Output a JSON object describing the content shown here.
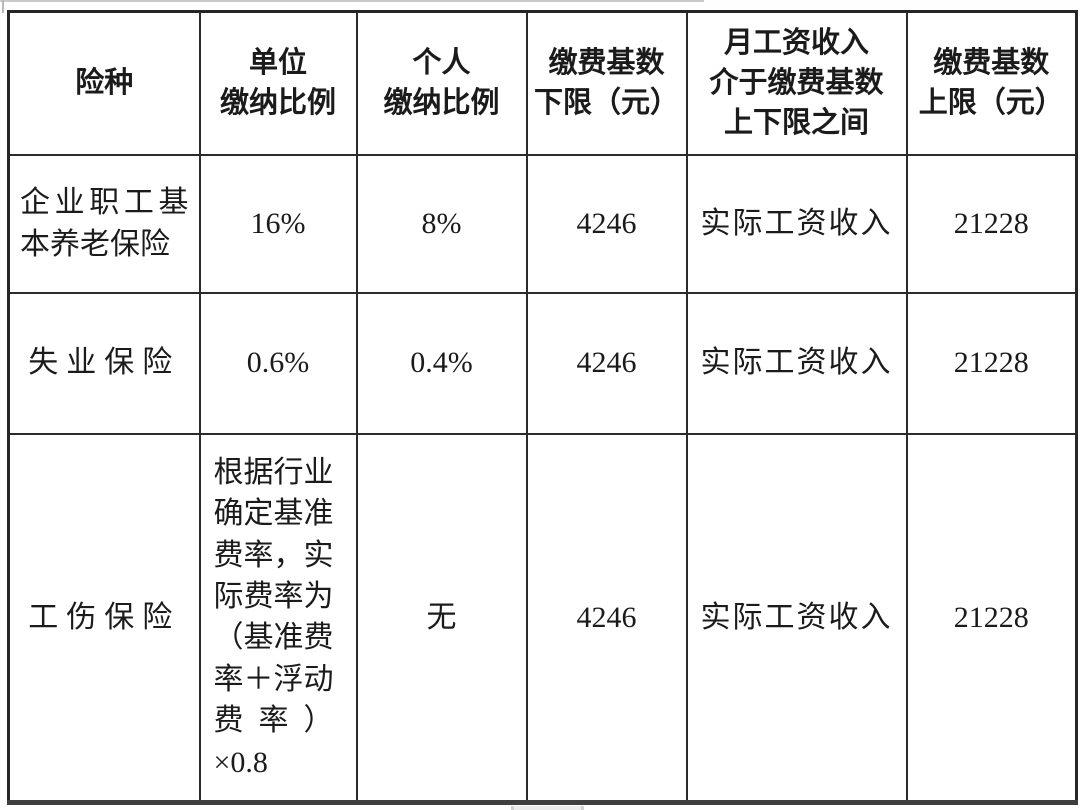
{
  "colors": {
    "border": "#2b2b2b",
    "outer_border": "#262626",
    "text": "#1b1b1b",
    "background": "#ffffff"
  },
  "table": {
    "columns": [
      {
        "key": "insurance_type",
        "label": "险种"
      },
      {
        "key": "employer_rate",
        "label": "单位\n缴纳比例"
      },
      {
        "key": "individual_rate",
        "label": "个人\n缴纳比例"
      },
      {
        "key": "base_lower_limit",
        "label": "缴费基数\n下限（元）"
      },
      {
        "key": "between_limits",
        "label": "月工资收入\n介于缴费基数\n上下限之间"
      },
      {
        "key": "base_upper_limit",
        "label": "缴费基数\n上限（元）"
      }
    ],
    "rows": [
      {
        "insurance_type": "企业职工基本养老保险",
        "employer_rate": "16%",
        "individual_rate": "8%",
        "base_lower_limit": "4246",
        "between_limits": "实际工资收入",
        "base_upper_limit": "21228"
      },
      {
        "insurance_type": "失业保险",
        "employer_rate": "0.6%",
        "individual_rate": "0.4%",
        "base_lower_limit": "4246",
        "between_limits": "实际工资收入",
        "base_upper_limit": "21228"
      },
      {
        "insurance_type": "工伤保险",
        "employer_rate": "根据行业\n确定基准\n费率，实\n际费率为\n（基准费\n率＋浮动\n费 率 ）\n×0.8",
        "individual_rate": "无",
        "base_lower_limit": "4246",
        "between_limits": "实际工资收入",
        "base_upper_limit": "21228"
      }
    ]
  }
}
